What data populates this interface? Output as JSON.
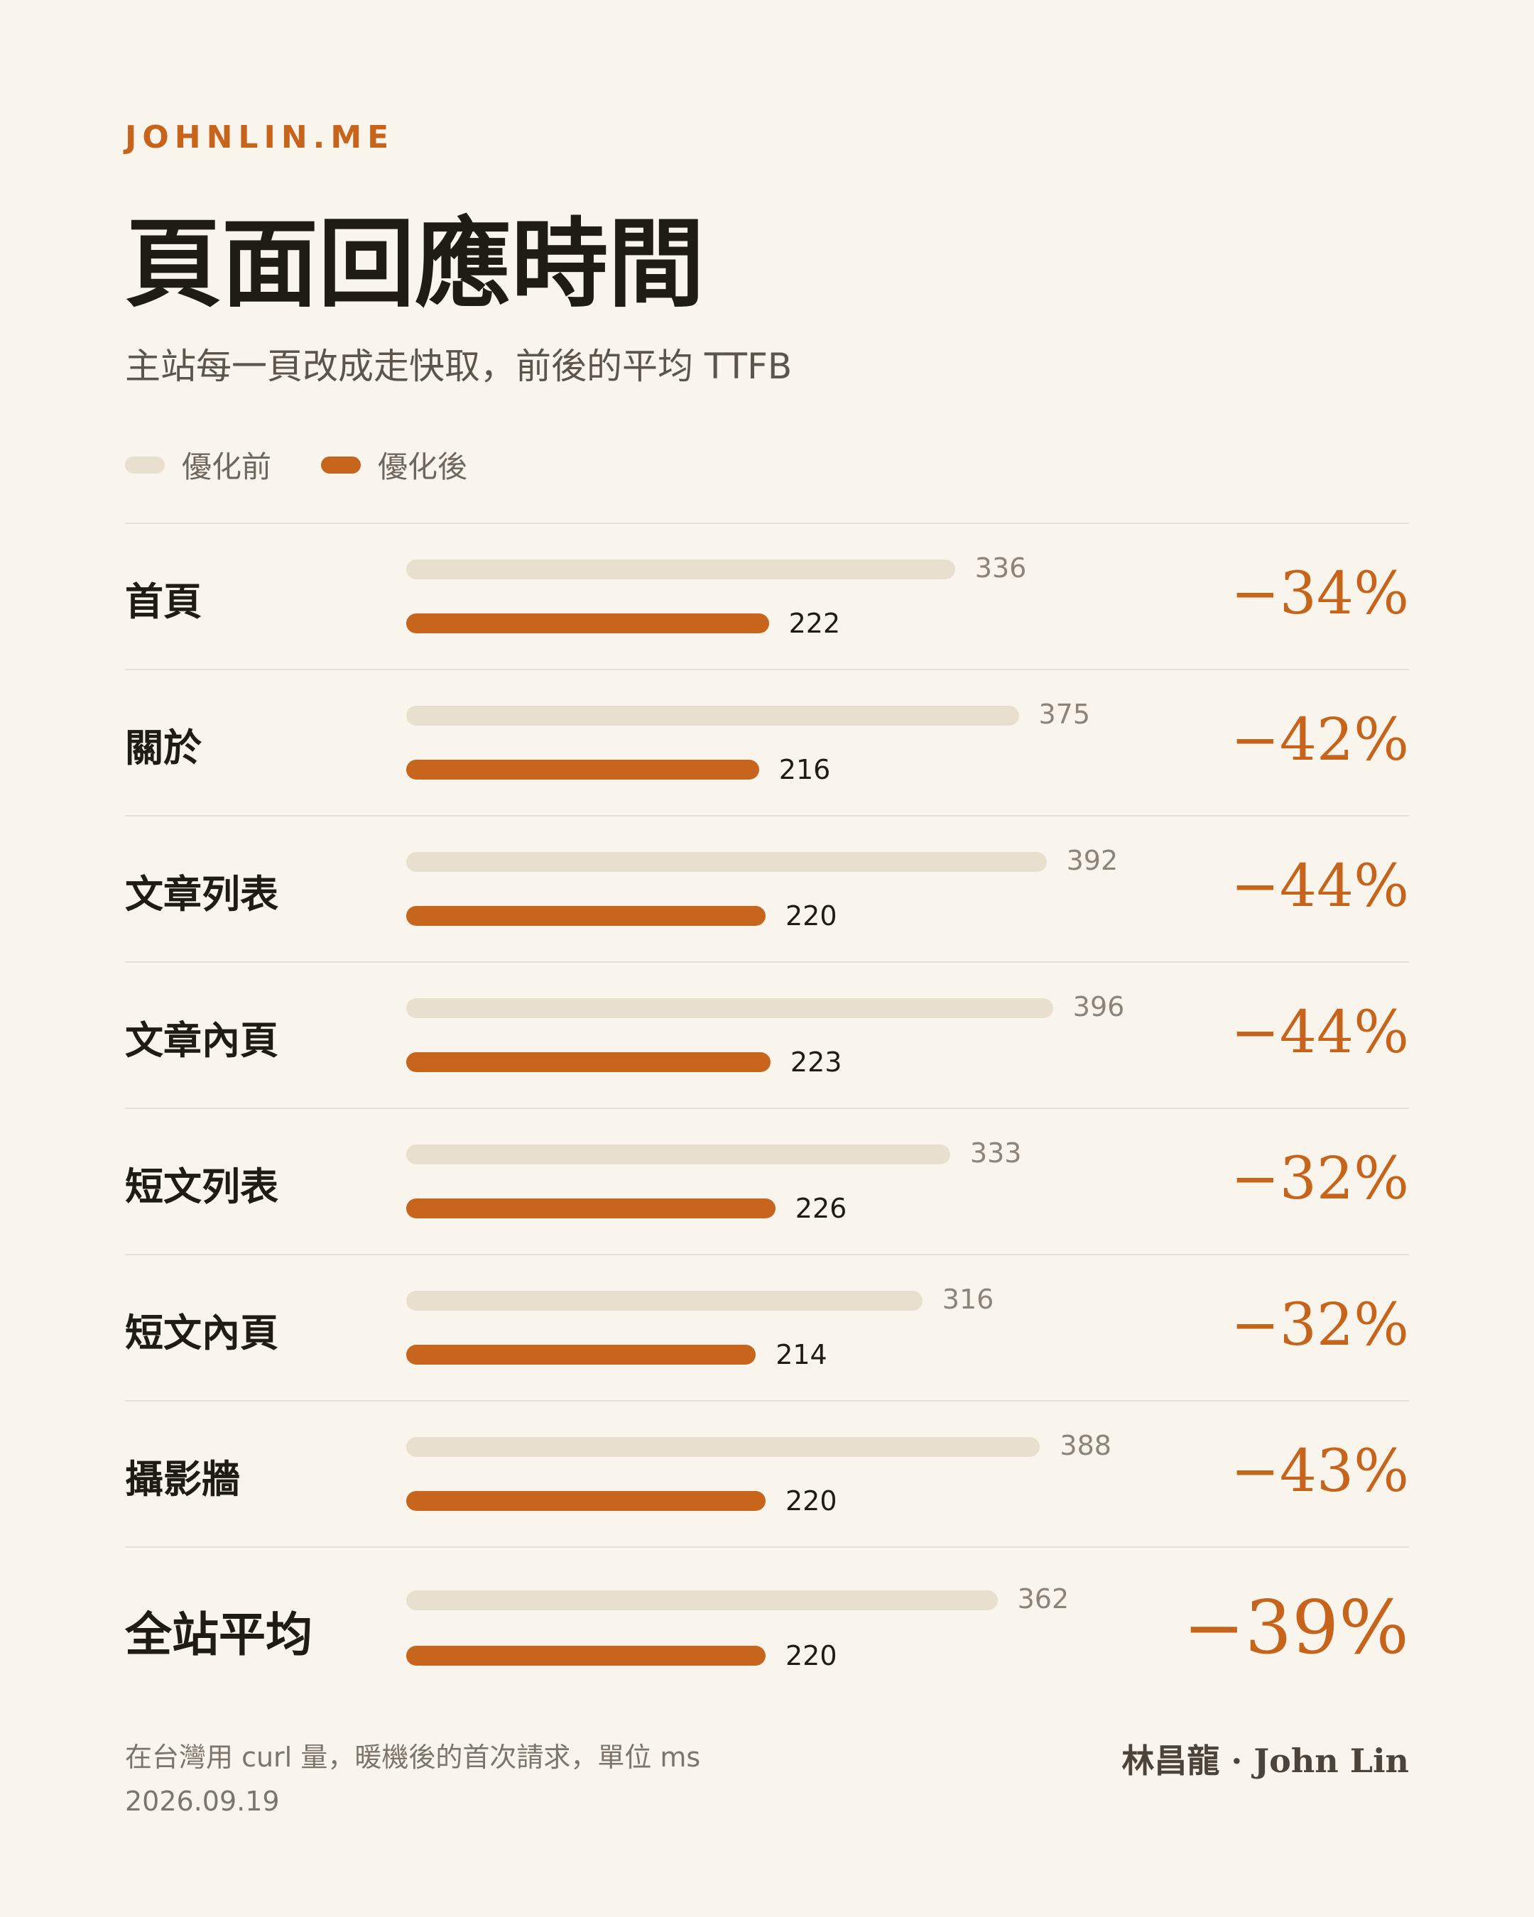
{
  "brand": "JOHNLIN.ME",
  "title": "頁面回應時間",
  "subtitle": "主站每一頁改成走快取，前後的平均 TTFB",
  "colors": {
    "before": "#e8dfcf",
    "after": "#c8651c",
    "accent": "#c7641c",
    "background": "#faf5ec"
  },
  "chart_data": {
    "type": "bar",
    "orientation": "horizontal",
    "categories": [
      "首頁",
      "關於",
      "文章列表",
      "文章內頁",
      "短文列表",
      "短文內頁",
      "攝影牆",
      "全站平均"
    ],
    "series": [
      {
        "name": "優化前",
        "values": [
          336,
          375,
          392,
          396,
          333,
          316,
          388,
          362
        ]
      },
      {
        "name": "優化後",
        "values": [
          222,
          216,
          220,
          223,
          226,
          214,
          220,
          220
        ]
      }
    ],
    "changes": [
      "−34%",
      "−42%",
      "−44%",
      "−44%",
      "−32%",
      "−32%",
      "−43%",
      "−39%"
    ],
    "legend_position": "top-left",
    "grid": false
  },
  "footer": {
    "note": "在台灣用 curl 量，暖機後的首次請求，單位 ms",
    "date": "2026.09.19",
    "author": "林昌龍 · John Lin"
  }
}
